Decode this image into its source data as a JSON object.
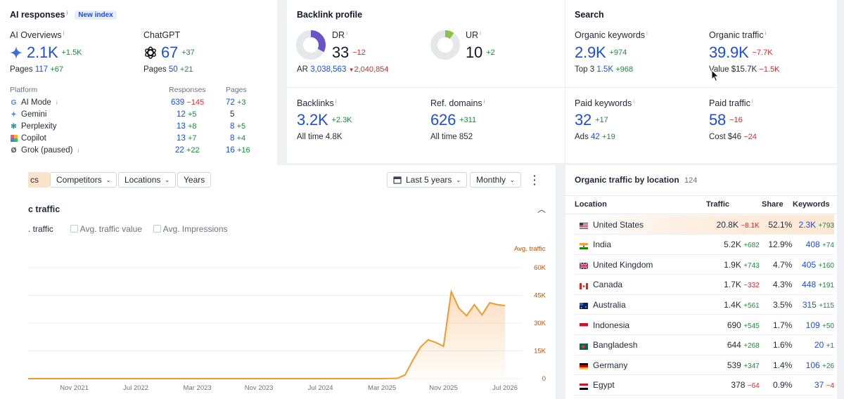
{
  "ai": {
    "title": "AI responses",
    "badge": "New index",
    "overviews": {
      "label": "AI Overviews",
      "value": "2.1K",
      "delta": "+1.5K",
      "pages_label": "Pages",
      "pages": "117",
      "pages_delta": "+67"
    },
    "chatgpt": {
      "label": "ChatGPT",
      "value": "67",
      "delta": "+37",
      "pages_label": "Pages",
      "pages": "50",
      "pages_delta": "+21"
    },
    "table_headers": {
      "platform": "Platform",
      "responses": "Responses",
      "pages": "Pages"
    },
    "platforms": [
      {
        "name": "AI Mode",
        "responses": "639",
        "resp_delta": "−145",
        "pages": "72",
        "pages_delta": "+3"
      },
      {
        "name": "Gemini",
        "responses": "12",
        "resp_delta": "+5",
        "pages": "5",
        "pages_delta": ""
      },
      {
        "name": "Perplexity",
        "responses": "13",
        "resp_delta": "+8",
        "pages": "8",
        "pages_delta": "+5"
      },
      {
        "name": "Copilot",
        "responses": "13",
        "resp_delta": "+7",
        "pages": "8",
        "pages_delta": "+4"
      },
      {
        "name": "Grok (paused)",
        "responses": "22",
        "resp_delta": "+22",
        "pages": "16",
        "pages_delta": "+16"
      }
    ]
  },
  "backlink": {
    "title": "Backlink profile",
    "dr": {
      "label": "DR",
      "value": "33",
      "delta": "−12",
      "fill": 0.33
    },
    "ar": {
      "label": "AR",
      "value": "3,038,563",
      "delta": "2,040,854"
    },
    "ur": {
      "label": "UR",
      "value": "10",
      "delta": "+2",
      "fill": 0.1
    },
    "backlinks": {
      "label": "Backlinks",
      "value": "3.2K",
      "delta": "+2.3K",
      "sub_label": "All time",
      "sub_value": "4.8K"
    },
    "refdomains": {
      "label": "Ref. domains",
      "value": "626",
      "delta": "+311",
      "sub_label": "All time",
      "sub_value": "852"
    }
  },
  "search": {
    "title": "Search",
    "organic_keywords": {
      "label": "Organic keywords",
      "value": "2.9K",
      "delta": "+974",
      "sub_label": "Top 3",
      "sub_value": "1.5K",
      "sub_delta": "+968"
    },
    "organic_traffic": {
      "label": "Organic traffic",
      "value": "39.9K",
      "delta": "−7.7K",
      "sub_label": "Value",
      "sub_value": "$15.7K",
      "sub_delta": "−1.5K"
    },
    "paid_keywords": {
      "label": "Paid keywords",
      "value": "32",
      "delta": "+17",
      "sub_label": "Ads",
      "sub_value": "42",
      "sub_delta": "+19"
    },
    "paid_traffic": {
      "label": "Paid traffic",
      "value": "58",
      "delta": "−16",
      "sub_label": "Cost",
      "sub_value": "$46",
      "sub_delta": "−24"
    }
  },
  "toolbar": {
    "tab_partial": "cs",
    "competitors": "Competitors",
    "locations": "Locations",
    "years": "Years",
    "range": "Last 5 years",
    "interval": "Monthly"
  },
  "chart_section": {
    "title": "c traffic",
    "legend_partial": ". traffic",
    "avg_value": "Avg. traffic value",
    "avg_impr": "Avg. Impressions",
    "axis_label": "Avg. traffic"
  },
  "chart_data": {
    "type": "area",
    "ylabel": "Avg. traffic",
    "y_ticks": [
      "60K",
      "45K",
      "30K",
      "15K",
      "0"
    ],
    "ylim": [
      0,
      60000
    ],
    "x_ticks": [
      "Nov 2021",
      "Jul 2022",
      "Mar 2023",
      "Nov 2023",
      "Jul 2024",
      "Mar 2025",
      "Nov 2025",
      "Jul 2026"
    ],
    "x": [
      "2021-11",
      "2022-03",
      "2022-07",
      "2022-11",
      "2023-03",
      "2023-07",
      "2023-11",
      "2024-03",
      "2024-07",
      "2024-11",
      "2025-03",
      "2025-05",
      "2025-06",
      "2025-07",
      "2025-08",
      "2025-09",
      "2025-10",
      "2025-11",
      "2025-12",
      "2026-01",
      "2026-02",
      "2026-03",
      "2026-04",
      "2026-05",
      "2026-06",
      "2026-07"
    ],
    "values": [
      0,
      0,
      0,
      0,
      0,
      0,
      0,
      0,
      0,
      0,
      0,
      200,
      2000,
      10000,
      17000,
      21000,
      19500,
      17500,
      47000,
      38000,
      34000,
      40000,
      34500,
      41000,
      40000,
      39500
    ],
    "line_color": "#f2992e",
    "grid": true
  },
  "location": {
    "title": "Organic traffic by location",
    "count": "124",
    "headers": {
      "location": "Location",
      "traffic": "Traffic",
      "share": "Share",
      "keywords": "Keywords"
    },
    "rows": [
      {
        "name": "United States",
        "traffic": "20.8K",
        "t_delta": "−8.1K",
        "share": "52.1%",
        "keywords": "2.3K",
        "k_delta": "+793",
        "flag": "us"
      },
      {
        "name": "India",
        "traffic": "5.2K",
        "t_delta": "+682",
        "share": "12.9%",
        "keywords": "408",
        "k_delta": "+74",
        "flag": "in"
      },
      {
        "name": "United Kingdom",
        "traffic": "1.9K",
        "t_delta": "+743",
        "share": "4.7%",
        "keywords": "405",
        "k_delta": "+160",
        "flag": "uk"
      },
      {
        "name": "Canada",
        "traffic": "1.7K",
        "t_delta": "−332",
        "share": "4.3%",
        "keywords": "448",
        "k_delta": "+191",
        "flag": "ca"
      },
      {
        "name": "Australia",
        "traffic": "1.4K",
        "t_delta": "+561",
        "share": "3.5%",
        "keywords": "315",
        "k_delta": "+115",
        "flag": "au"
      },
      {
        "name": "Indonesia",
        "traffic": "690",
        "t_delta": "+545",
        "share": "1.7%",
        "keywords": "109",
        "k_delta": "+50",
        "flag": "id"
      },
      {
        "name": "Bangladesh",
        "traffic": "644",
        "t_delta": "+268",
        "share": "1.6%",
        "keywords": "20",
        "k_delta": "+1",
        "flag": "bd"
      },
      {
        "name": "Germany",
        "traffic": "539",
        "t_delta": "+347",
        "share": "1.4%",
        "keywords": "106",
        "k_delta": "+26",
        "flag": "de"
      },
      {
        "name": "Egypt",
        "traffic": "378",
        "t_delta": "−64",
        "share": "0.9%",
        "keywords": "37",
        "k_delta": "−4",
        "flag": "eg"
      }
    ]
  }
}
